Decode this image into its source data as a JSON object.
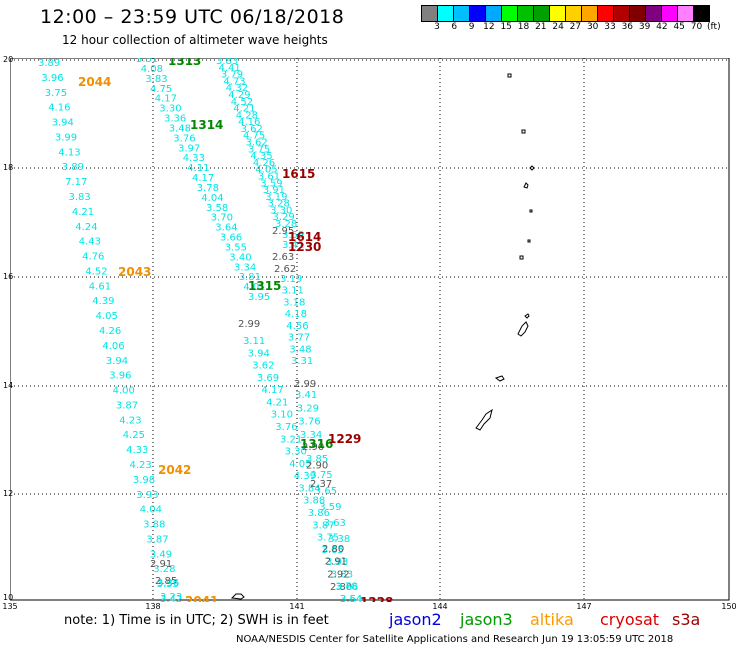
{
  "title": "12:00 – 23:59 UTC 06/18/2018",
  "subtitle": "12 hour collection of altimeter wave heights",
  "legend": {
    "colors": [
      "#808080",
      "#00ffff",
      "#00bfff",
      "#0000ff",
      "#00aaff",
      "#00ff00",
      "#00c000",
      "#00a000",
      "#ffff00",
      "#ffd000",
      "#ffa500",
      "#ff0000",
      "#b00000",
      "#800000",
      "#800080",
      "#ff00ff",
      "#ff80ff",
      "#000000"
    ],
    "labels": [
      "3",
      "6",
      "9",
      "12",
      "15",
      "18",
      "21",
      "24",
      "27",
      "30",
      "33",
      "36",
      "39",
      "42",
      "45",
      "70",
      "(ft)"
    ]
  },
  "lat_labels": [
    "20",
    "18",
    "16",
    "14",
    "12",
    "10"
  ],
  "lon_labels": [
    "135",
    "138",
    "141",
    "144",
    "147",
    "150"
  ],
  "colors": {
    "cyan": "#00e6e6",
    "gray": "#555555",
    "orange": "#ee9000",
    "green": "#008800",
    "darkred": "#990000"
  },
  "tracks": [
    {
      "color": "cyan",
      "values": [
        "3.89",
        "3.96",
        "3.75",
        "4.16",
        "3.94",
        "3.99",
        "4.13",
        "3.89",
        "7.17",
        "3.83",
        "4.21",
        "4.24",
        "4.43",
        "4.76",
        "4.52",
        "4.61",
        "4.39",
        "4.05",
        "4.26",
        "4.06",
        "3.94",
        "3.96",
        "4.00",
        "3.87",
        "4.23",
        "4.25",
        "4.33",
        "4.23",
        "3.98",
        "3.93",
        "4.04",
        "3.88",
        "3.87",
        "3.49",
        "3.28",
        "3.55",
        "3.42"
      ]
    },
    {
      "color": "gray",
      "values": [
        "2.91",
        "2.85"
      ]
    },
    {
      "color": "cyan",
      "values": [
        "3.36",
        "3.23"
      ]
    },
    {
      "color": "cyan",
      "values": [
        "3.51",
        "4.08",
        "3.83",
        "4.75",
        "4.17",
        "3.30",
        "3.36",
        "3.48",
        "3.76",
        "3.97",
        "4.33",
        "4.11",
        "4.17",
        "3.78",
        "4.04",
        "3.58",
        "3.70",
        "3.64",
        "3.66",
        "3.55",
        "3.40",
        "3.34",
        "3.81",
        "4.01",
        "3.95"
      ]
    },
    {
      "color": "gray",
      "values": [
        "2.99"
      ]
    },
    {
      "color": "cyan",
      "values": [
        "3.11",
        "3.94",
        "3.62",
        "3.69",
        "4.17",
        "4.21",
        "3.10",
        "3.76",
        "3.21",
        "3.30",
        "4.05",
        "4.39",
        "3.84",
        "3.88",
        "3.86",
        "3.87",
        "3.75",
        "3.65",
        "3.93",
        "3.83",
        "3.78",
        "3.64"
      ]
    },
    {
      "color": "cyan",
      "values": [
        "3.83",
        "4.41",
        "3.79",
        "4.73",
        "4.32",
        "4.29",
        "4.52",
        "4.21",
        "4.28",
        "4.16",
        "3.62",
        "4.75",
        "3.62",
        "3.75",
        "4.35",
        "4.26",
        "4.05",
        "3.61",
        "3.59",
        "3.91",
        "3.19",
        "3.28",
        "3.30",
        "3.29",
        "3.28"
      ]
    },
    {
      "color": "gray",
      "values": [
        "2.95"
      ]
    },
    {
      "color": "cyan",
      "values": [
        "3.59",
        "3.41"
      ]
    },
    {
      "color": "gray",
      "values": [
        "2.63",
        "2.62"
      ]
    },
    {
      "color": "cyan",
      "values": [
        "3.19",
        "3.11",
        "3.18",
        "4.18",
        "4.56",
        "3.77",
        "3.48",
        "3.31"
      ]
    },
    {
      "color": "gray",
      "values": [
        "2.99"
      ]
    },
    {
      "color": "cyan",
      "values": [
        "3.41",
        "3.29",
        "3.76",
        "3.34"
      ]
    },
    {
      "color": "gray",
      "values": [
        "2.90",
        "2.90",
        "2.37"
      ]
    },
    {
      "color": "cyan",
      "values": [
        "3.85",
        "3.75",
        "3.65",
        "3.59",
        "3.63",
        "3.38"
      ]
    },
    {
      "color": "gray",
      "values": [
        "2.80",
        "2.91",
        "2.92",
        "2.80"
      ]
    },
    {
      "color": "cyan",
      "values": [
        "3.66",
        "3.54"
      ]
    }
  ],
  "passes": [
    {
      "label": "2044",
      "color": "orange"
    },
    {
      "label": "2043",
      "color": "orange"
    },
    {
      "label": "2042",
      "color": "orange"
    },
    {
      "label": "2041",
      "color": "orange"
    },
    {
      "label": "1313",
      "color": "green"
    },
    {
      "label": "1314",
      "color": "green"
    },
    {
      "label": "1315",
      "color": "green"
    },
    {
      "label": "1316",
      "color": "green"
    },
    {
      "label": "1615",
      "color": "darkred"
    },
    {
      "label": "1614",
      "color": "darkred"
    },
    {
      "label": "1230",
      "color": "darkred"
    },
    {
      "label": "1229",
      "color": "darkred"
    },
    {
      "label": "1228",
      "color": "darkred"
    }
  ],
  "note": "note: 1) Time is in UTC; 2) SWH is in feet",
  "satellites": [
    {
      "name": "jason2",
      "color": "#0000dd"
    },
    {
      "name": "jason3",
      "color": "#009900"
    },
    {
      "name": "altika",
      "color": "#ff9900"
    },
    {
      "name": "cryosat",
      "color": "#dd0000"
    },
    {
      "name": "s3a",
      "color": "#990000"
    }
  ],
  "credit": "NOAA/NESDIS Center for Satellite Applications and Research   Jun 19 13:05:59 UTC 2018"
}
